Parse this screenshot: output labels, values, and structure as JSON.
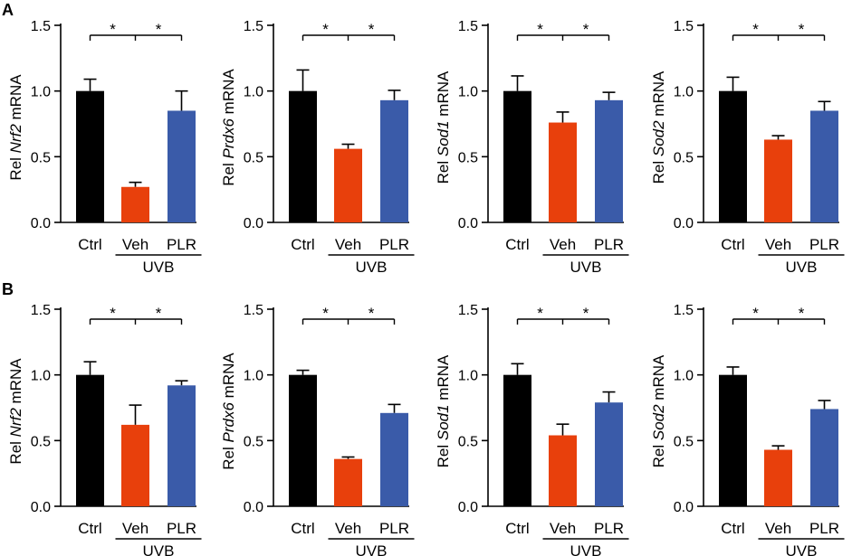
{
  "figure": {
    "panels": [
      {
        "label": "A"
      },
      {
        "label": "B"
      }
    ],
    "ticks": [
      "0.0",
      "0.5",
      "1.0",
      "1.5"
    ],
    "categories": [
      "Ctrl",
      "Veh",
      "PLR"
    ],
    "group_label": "UVB",
    "significance_mark": "*",
    "ylabel_prefix": "Rel",
    "ylabel_suffix": "mRNA",
    "colors": {
      "Ctrl": "#000000",
      "Veh": "#e8400c",
      "PLR": "#3a5ba9"
    }
  },
  "chart_data": [
    {
      "type": "bar",
      "panel": "A",
      "gene": "Nrf2",
      "ylabel": "Rel Nrf2 mRNA",
      "xlabel": "",
      "ylim": [
        0,
        1.5
      ],
      "categories": [
        "Ctrl",
        "Veh",
        "PLR"
      ],
      "values": [
        1.0,
        0.27,
        0.85
      ],
      "errors": [
        0.09,
        0.035,
        0.15
      ],
      "group": {
        "label": "UVB",
        "categories": [
          "Veh",
          "PLR"
        ]
      },
      "significance": [
        "*",
        "*"
      ]
    },
    {
      "type": "bar",
      "panel": "A",
      "gene": "Prdx6",
      "ylabel": "Rel Prdx6 mRNA",
      "xlabel": "",
      "ylim": [
        0,
        1.5
      ],
      "categories": [
        "Ctrl",
        "Veh",
        "PLR"
      ],
      "values": [
        1.0,
        0.56,
        0.93
      ],
      "errors": [
        0.16,
        0.035,
        0.075
      ],
      "group": {
        "label": "UVB",
        "categories": [
          "Veh",
          "PLR"
        ]
      },
      "significance": [
        "*",
        "*"
      ]
    },
    {
      "type": "bar",
      "panel": "A",
      "gene": "Sod1",
      "ylabel": "Rel Sod1 mRNA",
      "xlabel": "",
      "ylim": [
        0,
        1.5
      ],
      "categories": [
        "Ctrl",
        "Veh",
        "PLR"
      ],
      "values": [
        1.0,
        0.76,
        0.93
      ],
      "errors": [
        0.115,
        0.08,
        0.06
      ],
      "group": {
        "label": "UVB",
        "categories": [
          "Veh",
          "PLR"
        ]
      },
      "significance": [
        "*",
        "*"
      ]
    },
    {
      "type": "bar",
      "panel": "A",
      "gene": "Sod2",
      "ylabel": "Rel Sod2 mRNA",
      "xlabel": "",
      "ylim": [
        0,
        1.5
      ],
      "categories": [
        "Ctrl",
        "Veh",
        "PLR"
      ],
      "values": [
        1.0,
        0.63,
        0.85
      ],
      "errors": [
        0.105,
        0.03,
        0.07
      ],
      "group": {
        "label": "UVB",
        "categories": [
          "Veh",
          "PLR"
        ]
      },
      "significance": [
        "*",
        "*"
      ]
    },
    {
      "type": "bar",
      "panel": "B",
      "gene": "Nrf2",
      "ylabel": "Rel Nrf2 mRNA",
      "xlabel": "",
      "ylim": [
        0,
        1.5
      ],
      "categories": [
        "Ctrl",
        "Veh",
        "PLR"
      ],
      "values": [
        1.0,
        0.62,
        0.92
      ],
      "errors": [
        0.1,
        0.15,
        0.035
      ],
      "group": {
        "label": "UVB",
        "categories": [
          "Veh",
          "PLR"
        ]
      },
      "significance": [
        "*",
        "*"
      ]
    },
    {
      "type": "bar",
      "panel": "B",
      "gene": "Prdx6",
      "ylabel": "Rel Prdx6 mRNA",
      "xlabel": "",
      "ylim": [
        0,
        1.5
      ],
      "categories": [
        "Ctrl",
        "Veh",
        "PLR"
      ],
      "values": [
        1.0,
        0.36,
        0.71
      ],
      "errors": [
        0.035,
        0.015,
        0.065
      ],
      "group": {
        "label": "UVB",
        "categories": [
          "Veh",
          "PLR"
        ]
      },
      "significance": [
        "*",
        "*"
      ]
    },
    {
      "type": "bar",
      "panel": "B",
      "gene": "Sod1",
      "ylabel": "Rel Sod1 mRNA",
      "xlabel": "",
      "ylim": [
        0,
        1.5
      ],
      "categories": [
        "Ctrl",
        "Veh",
        "PLR"
      ],
      "values": [
        1.0,
        0.54,
        0.79
      ],
      "errors": [
        0.085,
        0.085,
        0.08
      ],
      "group": {
        "label": "UVB",
        "categories": [
          "Veh",
          "PLR"
        ]
      },
      "significance": [
        "*",
        "*"
      ]
    },
    {
      "type": "bar",
      "panel": "B",
      "gene": "Sod2",
      "ylabel": "Rel Sod2 mRNA",
      "xlabel": "",
      "ylim": [
        0,
        1.5
      ],
      "categories": [
        "Ctrl",
        "Veh",
        "PLR"
      ],
      "values": [
        1.0,
        0.43,
        0.74
      ],
      "errors": [
        0.06,
        0.03,
        0.065
      ],
      "group": {
        "label": "UVB",
        "categories": [
          "Veh",
          "PLR"
        ]
      },
      "significance": [
        "*",
        "*"
      ]
    }
  ]
}
